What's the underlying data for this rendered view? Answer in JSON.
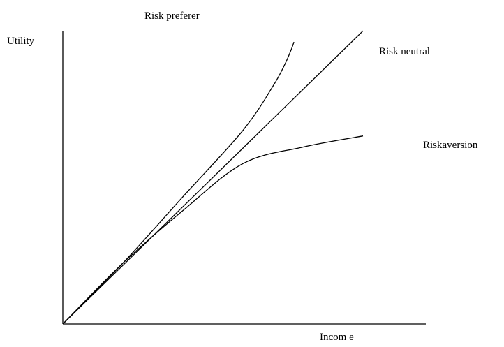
{
  "chart_data": {
    "type": "line",
    "title": "",
    "xlabel": "Incom e",
    "ylabel": "Utility",
    "grid": false,
    "xlim": [
      0,
      10
    ],
    "ylim": [
      0,
      10
    ],
    "series": [
      {
        "name": "Risk preferer",
        "x": [
          0,
          2,
          4,
          6,
          7,
          7.4,
          7.6,
          7.7
        ],
        "y": [
          0,
          2.2,
          4.6,
          7.0,
          8.6,
          9.4,
          9.9,
          10.2
        ]
      },
      {
        "name": "Risk neutral",
        "x": [
          0,
          10
        ],
        "y": [
          0,
          10.6
        ]
      },
      {
        "name": "Riskaversion",
        "x": [
          0,
          2,
          4,
          6,
          8,
          10
        ],
        "y": [
          0,
          2.2,
          4.1,
          5.8,
          6.4,
          6.8
        ]
      }
    ],
    "annotations": [
      "Risk preferer",
      "Risk neutral",
      "Riskaversion"
    ]
  },
  "labels": {
    "y_axis": "Utility",
    "x_axis": "Incom e",
    "risk_preferer": "Risk preferer",
    "risk_neutral": "Risk neutral",
    "risk_aversion": "Riskaversion"
  }
}
